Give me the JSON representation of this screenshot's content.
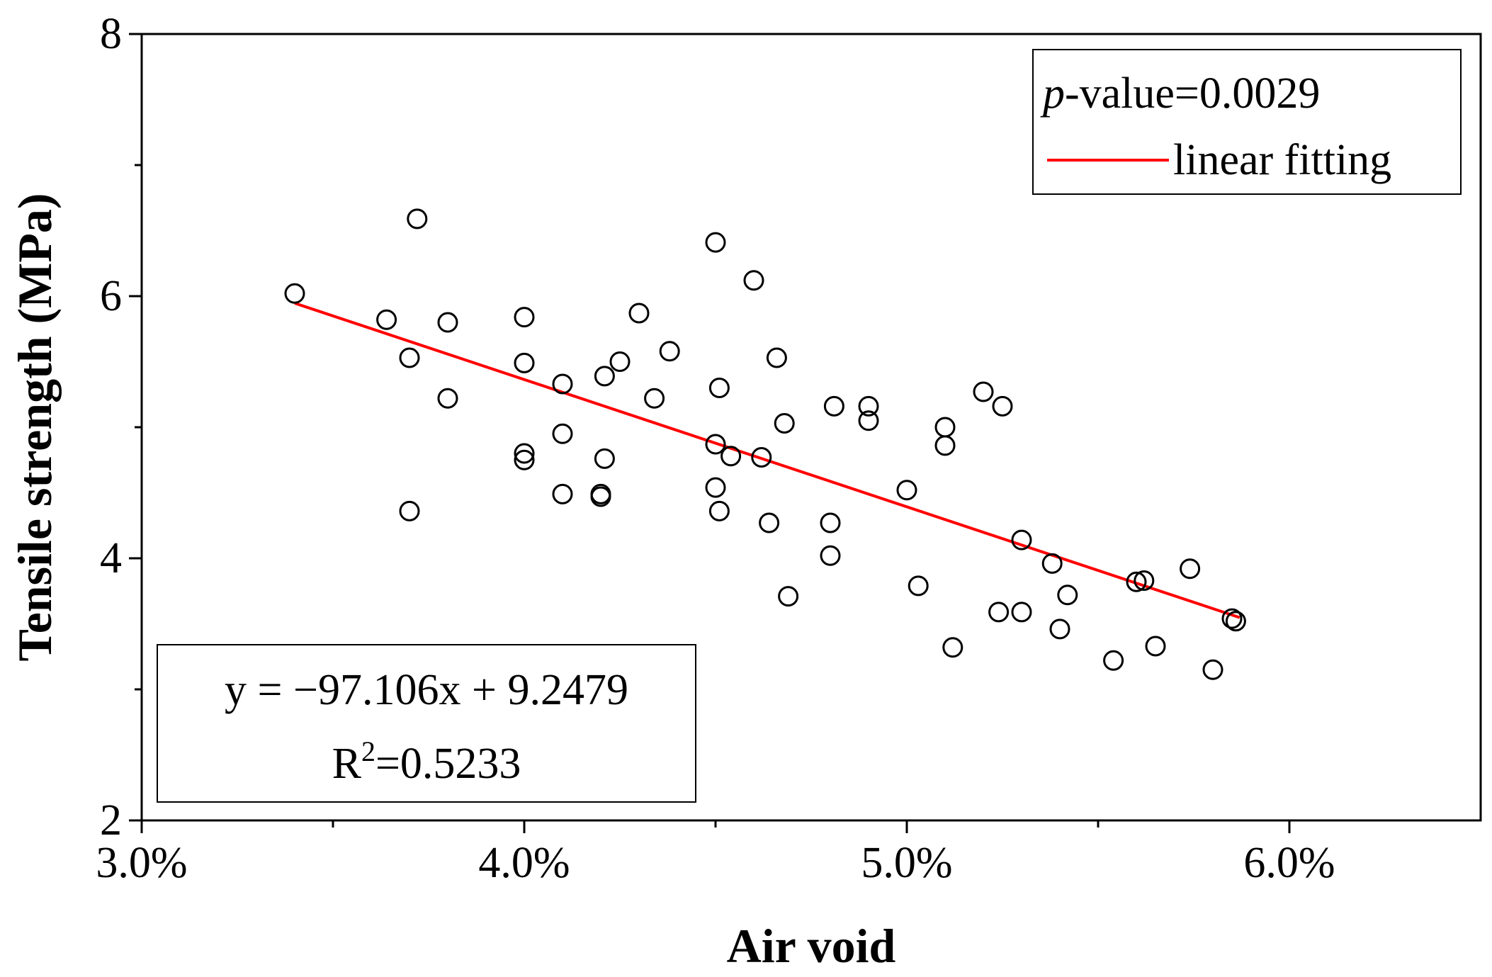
{
  "chart_data": {
    "type": "scatter",
    "xlabel": "Air void",
    "ylabel": "Tensile strength (MPa)",
    "xlim": [
      0.03,
      0.065
    ],
    "ylim": [
      2,
      8
    ],
    "x_ticks": [
      0.03,
      0.04,
      0.05,
      0.06
    ],
    "x_tick_labels": [
      "3.0%",
      "4.0%",
      "5.0%",
      "6.0%"
    ],
    "y_ticks": [
      2,
      4,
      6,
      8
    ],
    "y_tick_labels": [
      "2",
      "4",
      "6",
      "8"
    ],
    "legend": {
      "position": "top-right",
      "pvalue_label": "p",
      "pvalue_text": "-value=0.0029",
      "fit_label": "linear fitting"
    },
    "annotation": {
      "equation": "y = −97.106x + 9.2479",
      "r2_prefix": "R",
      "r2_superscript": "2",
      "r2_value": "=0.5233"
    },
    "fit": {
      "slope": -97.106,
      "intercept": 9.2479,
      "x_range": [
        0.034,
        0.0587
      ],
      "color": "#ff0000"
    },
    "series": [
      {
        "name": "samples",
        "points": [
          [
            0.034,
            6.02
          ],
          [
            0.0364,
            5.82
          ],
          [
            0.037,
            5.53
          ],
          [
            0.0372,
            6.59
          ],
          [
            0.037,
            4.36
          ],
          [
            0.038,
            5.8
          ],
          [
            0.038,
            5.22
          ],
          [
            0.04,
            5.84
          ],
          [
            0.04,
            5.49
          ],
          [
            0.04,
            4.8
          ],
          [
            0.04,
            4.75
          ],
          [
            0.041,
            5.33
          ],
          [
            0.041,
            4.95
          ],
          [
            0.041,
            4.49
          ],
          [
            0.042,
            4.49
          ],
          [
            0.042,
            4.47
          ],
          [
            0.0421,
            5.39
          ],
          [
            0.0421,
            4.76
          ],
          [
            0.0425,
            5.5
          ],
          [
            0.043,
            5.87
          ],
          [
            0.0434,
            5.22
          ],
          [
            0.0438,
            5.58
          ],
          [
            0.045,
            6.41
          ],
          [
            0.0451,
            5.3
          ],
          [
            0.045,
            4.87
          ],
          [
            0.045,
            4.54
          ],
          [
            0.0451,
            4.36
          ],
          [
            0.0454,
            4.78
          ],
          [
            0.046,
            6.12
          ],
          [
            0.0462,
            4.77
          ],
          [
            0.0464,
            4.27
          ],
          [
            0.0466,
            5.53
          ],
          [
            0.0468,
            5.03
          ],
          [
            0.0469,
            3.71
          ],
          [
            0.048,
            4.27
          ],
          [
            0.048,
            4.02
          ],
          [
            0.0481,
            5.16
          ],
          [
            0.049,
            5.16
          ],
          [
            0.049,
            5.05
          ],
          [
            0.05,
            4.52
          ],
          [
            0.0503,
            3.79
          ],
          [
            0.051,
            5.0
          ],
          [
            0.051,
            4.86
          ],
          [
            0.0512,
            3.32
          ],
          [
            0.052,
            5.27
          ],
          [
            0.0525,
            5.16
          ],
          [
            0.0524,
            3.59
          ],
          [
            0.053,
            4.14
          ],
          [
            0.053,
            3.59
          ],
          [
            0.0538,
            3.96
          ],
          [
            0.054,
            3.46
          ],
          [
            0.0542,
            3.72
          ],
          [
            0.0554,
            3.22
          ],
          [
            0.056,
            3.82
          ],
          [
            0.0562,
            3.83
          ],
          [
            0.0565,
            3.33
          ],
          [
            0.0574,
            3.92
          ],
          [
            0.058,
            3.15
          ],
          [
            0.0585,
            3.54
          ],
          [
            0.0586,
            3.52
          ]
        ]
      }
    ]
  }
}
